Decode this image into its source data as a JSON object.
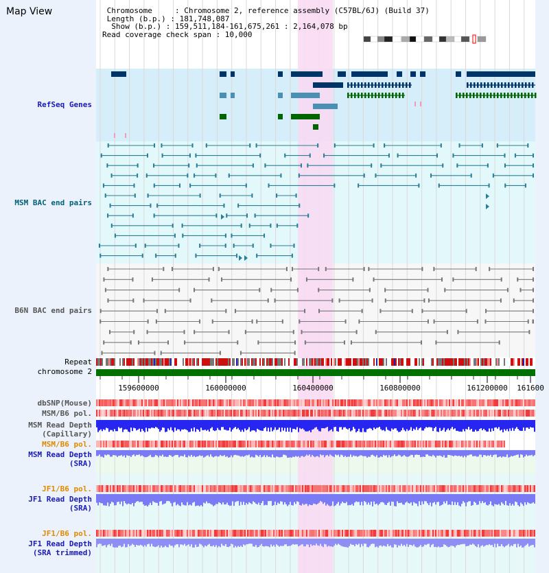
{
  "page": {
    "title": "Map View"
  },
  "info": {
    "line1": " Chromosome     : Chromosome 2, reference assembly (C57BL/6J) (Build 37)",
    "line2": " Length (b.p.) : 181,748,087",
    "line3": "  Show (b.p.) : 159,511,184-161,675,261 : 2,164,078 bp",
    "line4": "Read coverage check span : 10,000"
  },
  "tracks": {
    "refseq": "RefSeq Genes",
    "msm_bac": "MSM BAC end pairs",
    "b6n_bac": "B6N BAC end pairs",
    "repeat": "Repeat",
    "chromosome": "chromosome 2",
    "dbsnp": "dbSNP(Mouse)",
    "msm_pol": "MSM/B6 pol.",
    "msm_depth_cap_1": "MSM Read Depth",
    "msm_depth_cap_2": "(Capillary)",
    "msm_pol_sra": "MSM/B6 pol.",
    "msm_depth_sra_1": "MSM Read Depth",
    "msm_depth_sra_2": "(SRA)",
    "jf1_pol": "JF1/B6 pol.",
    "jf1_depth_1": "JF1 Read Depth",
    "jf1_depth_2": "(SRA)",
    "jf1_pol_trim": "JF1/B6 pol.",
    "jf1_depth_trim_1": "JF1 Read Depth",
    "jf1_depth_trim_2": "(SRA trimmed)"
  },
  "axis": {
    "ticks": [
      "159600000",
      "160000000",
      "160400000",
      "160800000",
      "161200000",
      "161600"
    ]
  },
  "colors": {
    "highlight": "#f9d9f2",
    "refseq_bg": "#d6eefa",
    "msm_bg": "#e2f8fb",
    "chromosome": "#007000",
    "gene_dark": "#003366",
    "gene_mid": "#4a8fb4",
    "gene_green": "#006400",
    "bac_teal": "#2a7d93",
    "bac_gray": "#777777",
    "depth_blue": "#2626f0",
    "depth_light": "#7a7af5"
  }
}
